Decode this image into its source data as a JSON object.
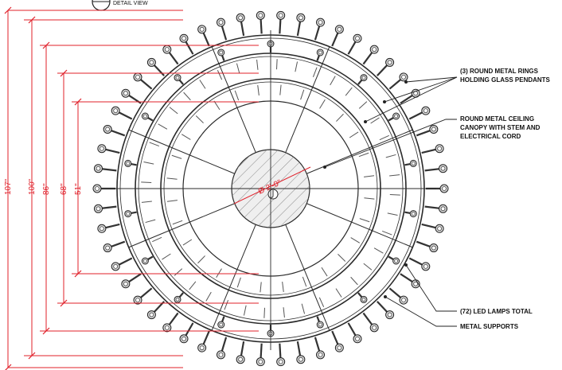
{
  "sheet": {
    "title_block_text": "DETAIL VIEW"
  },
  "dimensions": {
    "outer": "107\"",
    "ring_1": "100\"",
    "ring_2": "86\"",
    "ring_3": "68\"",
    "ring_4": "51\"",
    "canopy": "Ø 2'-0\""
  },
  "callouts": {
    "rings": [
      "(3) ROUND METAL RINGS",
      "HOLDING GLASS PENDANTS"
    ],
    "canopy": [
      "ROUND METAL CEILING",
      "CANOPY WITH STEM AND",
      "ELECTRICAL CORD"
    ],
    "lamps": "(72) LED LAMPS TOTAL",
    "supports": "METAL SUPPORTS"
  },
  "lamp_count": 72,
  "colors": {
    "linework": "#2a2a2a",
    "dimension": "#e0202a",
    "hatch": "#cfcfcf"
  }
}
